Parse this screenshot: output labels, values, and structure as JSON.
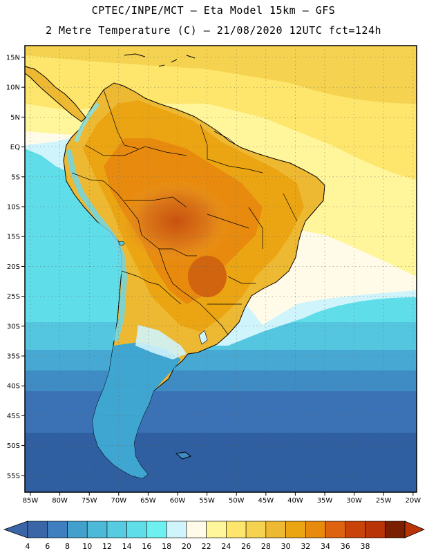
{
  "title": {
    "line1": "CPTEC/INPE/MCT –  Eta Model 15km – GFS",
    "line2": "2 Metre Temperature (C) – 21/08/2020 12UTC fct=124h"
  },
  "lat_labels": [
    "15N",
    "10N",
    "5N",
    "EQ",
    "5S",
    "10S",
    "15S",
    "20S",
    "25S",
    "30S",
    "35S",
    "40S",
    "45S",
    "50S",
    "55S"
  ],
  "lon_labels": [
    "85W",
    "80W",
    "75W",
    "70W",
    "65W",
    "60W",
    "55W",
    "50W",
    "45W",
    "40W",
    "35W",
    "30W",
    "25W",
    "20W"
  ],
  "colorbar": {
    "labels": [
      "4",
      "6",
      "8",
      "10",
      "12",
      "14",
      "16",
      "18",
      "20",
      "22",
      "24",
      "26",
      "28",
      "30",
      "32",
      "34",
      "36",
      "38"
    ],
    "colors": [
      "#3a66a8",
      "#3f7fbf",
      "#43a0cc",
      "#4cb9d8",
      "#57cbe0",
      "#5fdde8",
      "#6ff0f0",
      "#cff4fb",
      "#fffbe8",
      "#fff59b",
      "#fde66b",
      "#f5d24f",
      "#edb832",
      "#eca512",
      "#e88a0e",
      "#dd6310",
      "#c8420a",
      "#b93407",
      "#7a1f00"
    ]
  },
  "legend_semantics": "2 metre temperature, degrees Celsius"
}
